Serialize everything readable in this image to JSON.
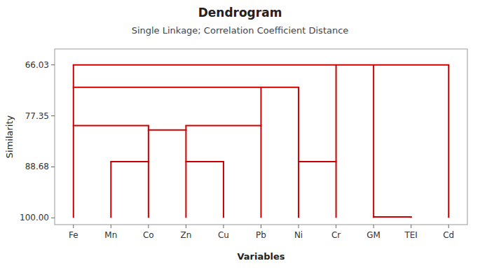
{
  "chart_data": {
    "type": "dendrogram",
    "title": "Dendrogram",
    "subtitle": "Single Linkage; Correlation Coefficient Distance",
    "x_label": "Variables",
    "y_label": "Similarity",
    "categories": [
      "Fe",
      "Mn",
      "Co",
      "Zn",
      "Cu",
      "Pb",
      "Ni",
      "Cr",
      "GM",
      "TEI",
      "Cd"
    ],
    "leaf_value": 100.0,
    "merges": [
      {
        "arms": [
          "Mn",
          "Co"
        ],
        "value": 87.5
      },
      {
        "arms": [
          "Zn",
          "Cu"
        ],
        "value": 87.5
      },
      {
        "arms": [
          "Ni",
          "Cr"
        ],
        "value": 87.5
      },
      {
        "arms": [
          "GM",
          "TEI"
        ],
        "value": 99.8
      },
      {
        "arms": [
          "Co",
          "Zn"
        ],
        "value": 80.5
      },
      {
        "arms": [
          "Fe",
          "Co"
        ],
        "value": 79.5
      },
      {
        "arms": [
          "Zn",
          "Pb"
        ],
        "value": 79.5
      },
      {
        "arms": [
          "Fe",
          "Pb",
          "Ni"
        ],
        "value": 71.0
      },
      {
        "arms": [
          "Fe",
          "Cr",
          "GM",
          "Cd"
        ],
        "value": 66.03
      }
    ],
    "color": "#cc0000",
    "ylim": [
      101.5,
      62.5
    ],
    "yticks": [
      66.03,
      77.35,
      88.68,
      {
        "value": 100.0,
        "label": "100.00"
      }
    ]
  }
}
